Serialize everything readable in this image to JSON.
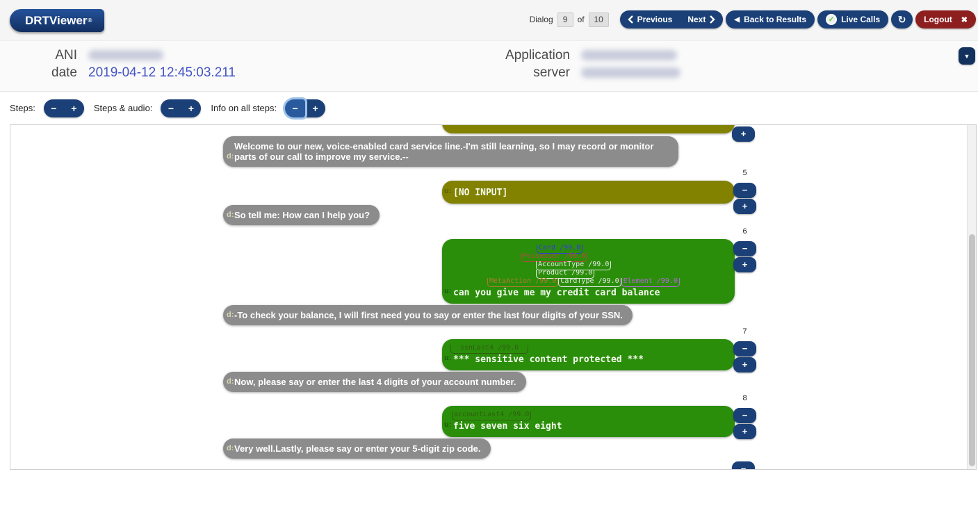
{
  "app": {
    "name": "DRTViewer",
    "registered_mark": "®"
  },
  "topbar": {
    "dialog_label": "Dialog",
    "dialog_current": "9",
    "of_label": "of",
    "dialog_total": "10",
    "previous_label": "Previous",
    "next_label": "Next",
    "back_to_results_label": "Back to Results",
    "back_arrow": "◀",
    "live_calls_label": "Live Calls",
    "check_glyph": "✓",
    "refresh_glyph": "↻",
    "logout_label": "Logout",
    "close_glyph": "✖",
    "caret_down_glyph": "▼"
  },
  "info": {
    "ani_label": "ANI",
    "date_label": "date",
    "date_value": "2019-04-12 12:45:03.211",
    "application_label": "Application",
    "server_label": "server"
  },
  "controls": {
    "steps_label": "Steps:",
    "steps_audio_label": "Steps & audio:",
    "info_all_steps_label": "Info on all steps:",
    "minus": "−",
    "plus": "+"
  },
  "colors": {
    "navy_button": "#1b4077",
    "logout_red": "#8e1f1f",
    "olive_bubble": "#828200",
    "green_bubble": "#2b8e0b",
    "gray_bubble": "#8c8c8c",
    "date_blue": "#4353c4",
    "check_green": "#5bd121"
  },
  "conversation": {
    "rows": [
      {
        "type": "user",
        "variant": "olive",
        "clipped": true,
        "buttons": [
          "plus"
        ]
      },
      {
        "type": "system",
        "prefix": "d:",
        "text": "Welcome to our new, voice-enabled card service line.-I'm still learning, so I may record or monitor parts of our call to improve my service.--"
      },
      {
        "type": "user",
        "variant": "olive",
        "step": "5",
        "prefix": "u:",
        "text": "[NO INPUT]",
        "buttons": [
          "minus",
          "plus"
        ]
      },
      {
        "type": "system",
        "prefix": "d:",
        "text": "So tell me: How can I help you?"
      },
      {
        "type": "user",
        "variant": "green",
        "step": "6",
        "prefix": "u:",
        "text": "can you give me my credit card balance",
        "buttons": [
          "minus",
          "plus"
        ],
        "annotations": [
          {
            "indent": 132,
            "items": [
              {
                "label": "Card /99.0",
                "color": "#3535e8"
              }
            ]
          },
          {
            "indent": 109,
            "items": [
              {
                "label": "Possessor /99.0",
                "color": "#b44b3c"
              }
            ]
          },
          {
            "indent": 131,
            "items": [
              {
                "label": "AccountType /99.0",
                "color": "#e6e6e6"
              }
            ]
          },
          {
            "indent": 131,
            "items": [
              {
                "label": "Product /99.0",
                "color": "#eeeeee"
              }
            ]
          },
          {
            "indent": 61,
            "items": [
              {
                "label": "MetaAction /99.0",
                "color": "#b07a30"
              },
              {
                "label": "CardType /99.0",
                "color": "#e6e6e6"
              },
              {
                "label": "Element /99.0",
                "color": "#b266d9"
              }
            ]
          }
        ]
      },
      {
        "type": "system",
        "prefix": "d:",
        "text": "-To check your balance, I will first need you to say or enter the last four digits of your SSN."
      },
      {
        "type": "user",
        "variant": "green",
        "step": "7",
        "prefix": "u:",
        "text": "*** sensitive content protected ***",
        "buttons": [
          "minus",
          "plus"
        ],
        "annotations": [
          {
            "indent": 8,
            "items": [
              {
                "label": "ssnLast4 /99.0",
                "color": "#2f5e0f",
                "wide": true
              }
            ]
          }
        ]
      },
      {
        "type": "system",
        "prefix": "d:",
        "text": "Now, please say or enter the last 4 digits of your account number."
      },
      {
        "type": "user",
        "variant": "green",
        "step": "8",
        "prefix": "u:",
        "text": "five seven six eight",
        "buttons": [
          "minus",
          "plus"
        ],
        "annotations": [
          {
            "indent": 10,
            "items": [
              {
                "label": "accountLast4 /99.0",
                "color": "#2f5e0f",
                "wide": true
              }
            ]
          }
        ]
      },
      {
        "type": "system",
        "prefix": "d:",
        "text": "Very well.Lastly, please say or enter your 5-digit zip code."
      },
      {
        "type": "user",
        "variant": "sliver",
        "buttons": [
          "minus"
        ]
      }
    ]
  }
}
